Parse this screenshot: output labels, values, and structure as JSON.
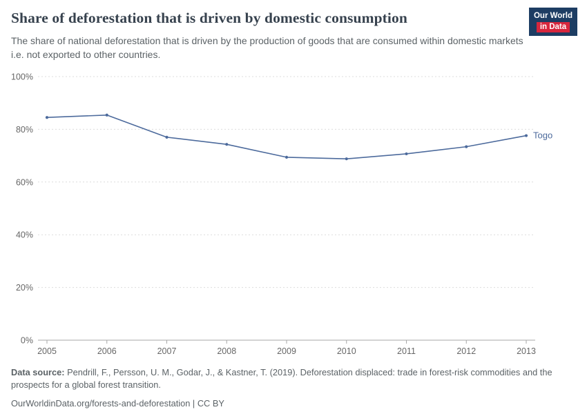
{
  "header": {
    "title": "Share of deforestation that is driven by domestic consumption",
    "subtitle": "The share of national deforestation that is driven by the production of goods that are consumed within domestic markets i.e. not exported to other countries.",
    "logo": {
      "line1": "Our World",
      "line2": "in Data",
      "bg": "#1d3d63",
      "accent": "#d7263d"
    }
  },
  "chart_data": {
    "type": "line",
    "x": [
      2005,
      2006,
      2007,
      2008,
      2009,
      2010,
      2011,
      2012,
      2013
    ],
    "series": [
      {
        "name": "Togo",
        "color": "#4C6A9C",
        "values": [
          84.5,
          85.4,
          77.0,
          74.3,
          69.4,
          68.8,
          70.7,
          73.4,
          77.6
        ]
      }
    ],
    "title": "Share of deforestation that is driven by domestic consumption",
    "xlabel": "",
    "ylabel": "",
    "ylim": [
      0,
      100
    ],
    "yticks": [
      0,
      20,
      40,
      60,
      80,
      100
    ],
    "ytick_suffix": "%",
    "grid": true,
    "grid_color": "#dcdcdc",
    "axis_color": "#a7a7a7",
    "tick_label_color": "#666666",
    "legend_position": "end-of-line-label"
  },
  "footer": {
    "source_label": "Data source:",
    "source_text": " Pendrill, F., Persson, U. M., Godar, J., & Kastner, T. (2019). Deforestation displaced: trade in forest-risk commodities and the prospects for a global forest transition.",
    "license": "OurWorldinData.org/forests-and-deforestation | CC BY"
  }
}
